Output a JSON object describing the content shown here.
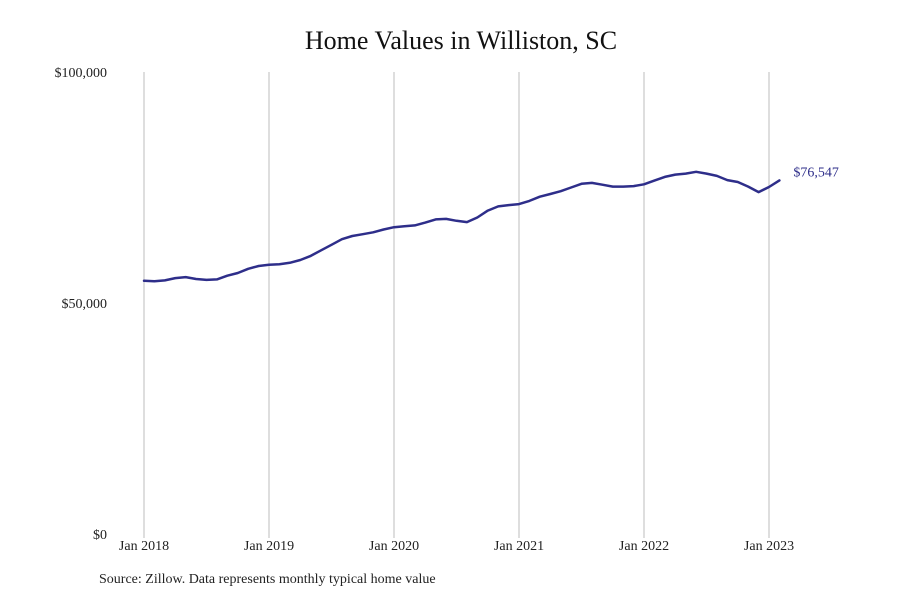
{
  "chart_data": {
    "type": "line",
    "title": "Home Values in Williston, SC",
    "source": "Source: Zillow. Data represents monthly typical home value",
    "ylim": [
      0,
      100000
    ],
    "yticks": [
      {
        "value": 0,
        "label": "$0"
      },
      {
        "value": 50000,
        "label": "$50,000"
      },
      {
        "value": 100000,
        "label": "$100,000"
      }
    ],
    "xticks": [
      {
        "date": "2018-01",
        "label": "Jan 2018"
      },
      {
        "date": "2019-01",
        "label": "Jan 2019"
      },
      {
        "date": "2020-01",
        "label": "Jan 2020"
      },
      {
        "date": "2021-01",
        "label": "Jan 2021"
      },
      {
        "date": "2022-01",
        "label": "Jan 2022"
      },
      {
        "date": "2023-01",
        "label": "Jan 2023"
      }
    ],
    "grid": "vertical",
    "line_color": "#2e2e8a",
    "end_label": "$76,547",
    "series": [
      {
        "x": [
          "2018-01",
          "2018-02",
          "2018-03",
          "2018-04",
          "2018-05",
          "2018-06",
          "2018-07",
          "2018-08",
          "2018-09",
          "2018-10",
          "2018-11",
          "2018-12",
          "2019-01",
          "2019-02",
          "2019-03",
          "2019-04",
          "2019-05",
          "2019-06",
          "2019-07",
          "2019-08",
          "2019-09",
          "2019-10",
          "2019-11",
          "2019-12",
          "2020-01",
          "2020-02",
          "2020-03",
          "2020-04",
          "2020-05",
          "2020-06",
          "2020-07",
          "2020-08",
          "2020-09",
          "2020-10",
          "2020-11",
          "2020-12",
          "2021-01",
          "2021-02",
          "2021-03",
          "2021-04",
          "2021-05",
          "2021-06",
          "2021-07",
          "2021-08",
          "2021-09",
          "2021-10",
          "2021-11",
          "2021-12",
          "2022-01",
          "2022-02",
          "2022-03",
          "2022-04",
          "2022-05",
          "2022-06",
          "2022-07",
          "2022-08",
          "2022-09",
          "2022-10",
          "2022-11",
          "2022-12",
          "2023-01",
          "2023-02"
        ],
        "values": [
          54800,
          54700,
          54900,
          55400,
          55600,
          55200,
          55000,
          55100,
          55900,
          56500,
          57400,
          58000,
          58300,
          58400,
          58700,
          59300,
          60200,
          61400,
          62600,
          63800,
          64500,
          64900,
          65300,
          65900,
          66400,
          66600,
          66800,
          67400,
          68100,
          68200,
          67800,
          67500,
          68500,
          70000,
          70900,
          71200,
          71400,
          72100,
          73000,
          73600,
          74200,
          75000,
          75800,
          76000,
          75600,
          75200,
          75200,
          75300,
          75700,
          76500,
          77300,
          77800,
          78000,
          78400,
          78000,
          77500,
          76600,
          76200,
          75200,
          74000,
          75100,
          76547
        ]
      }
    ]
  }
}
